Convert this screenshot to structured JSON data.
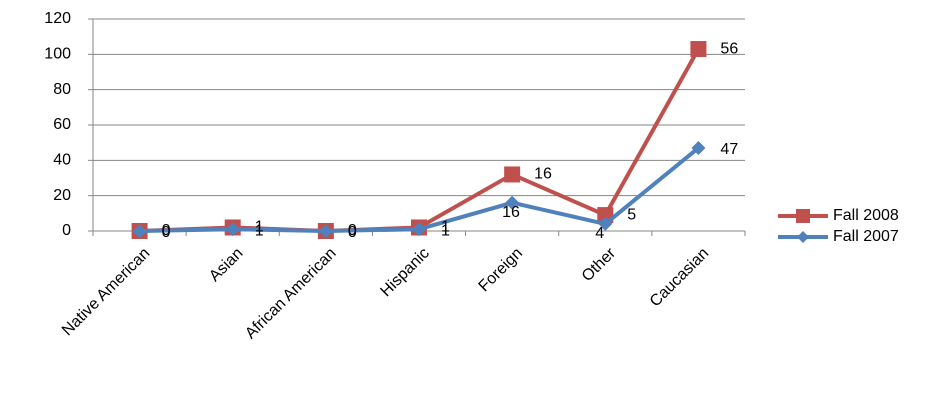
{
  "chart_data": {
    "type": "line",
    "stacked": true,
    "categories": [
      "Native American",
      "Asian",
      "African American",
      "Hispanic",
      "Foreign",
      "Other",
      "Caucasian"
    ],
    "series": [
      {
        "name": "Fall 2007",
        "color": "#4f81bd",
        "marker": "diamond",
        "values": [
          0,
          1,
          0,
          1,
          16,
          4,
          47
        ]
      },
      {
        "name": "Fall 2008",
        "color": "#c0504d",
        "marker": "square",
        "values": [
          0,
          1,
          0,
          1,
          16,
          5,
          56
        ]
      }
    ],
    "ylim": [
      0,
      120
    ],
    "yticks": [
      0,
      20,
      40,
      60,
      80,
      100,
      120
    ],
    "grid": true,
    "legend": "right"
  }
}
